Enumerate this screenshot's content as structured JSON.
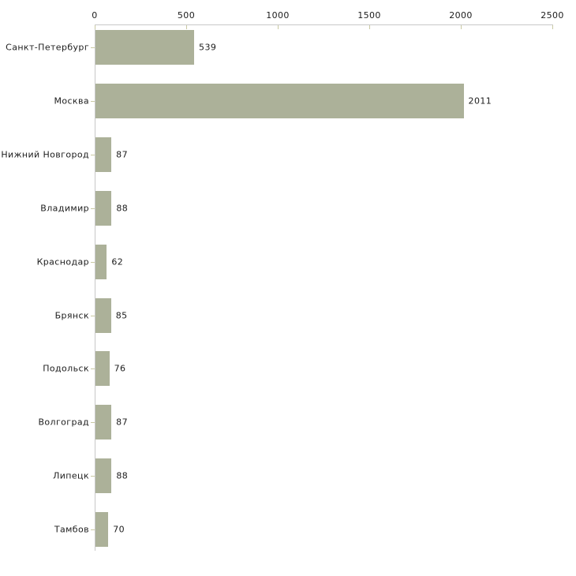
{
  "chart_data": {
    "type": "bar",
    "orientation": "horizontal",
    "title": "",
    "xlabel": "",
    "ylabel": "",
    "categories": [
      "Санкт-Петербург",
      "Москва",
      "Нижний Новгород",
      "Владимир",
      "Краснодар",
      "Брянск",
      "Подольск",
      "Волгоград",
      "Липецк",
      "Тамбов"
    ],
    "values": [
      539,
      2011,
      87,
      88,
      62,
      85,
      76,
      87,
      88,
      70
    ],
    "value_labels": [
      "539",
      "2011",
      "87",
      "88",
      "62",
      "85",
      "76",
      "87",
      "88",
      "70"
    ],
    "x_ticks": [
      0,
      500,
      1000,
      1500,
      2000,
      2500
    ],
    "xlim": [
      0,
      2500
    ],
    "grid": false,
    "legend": false,
    "axis_position": "top",
    "colors": {
      "bar": "#acb199",
      "axis_line": "#c8c8c8",
      "tick_mark": "#c9c9a3",
      "text": "#1c1c1c",
      "background": "#ffffff"
    }
  }
}
